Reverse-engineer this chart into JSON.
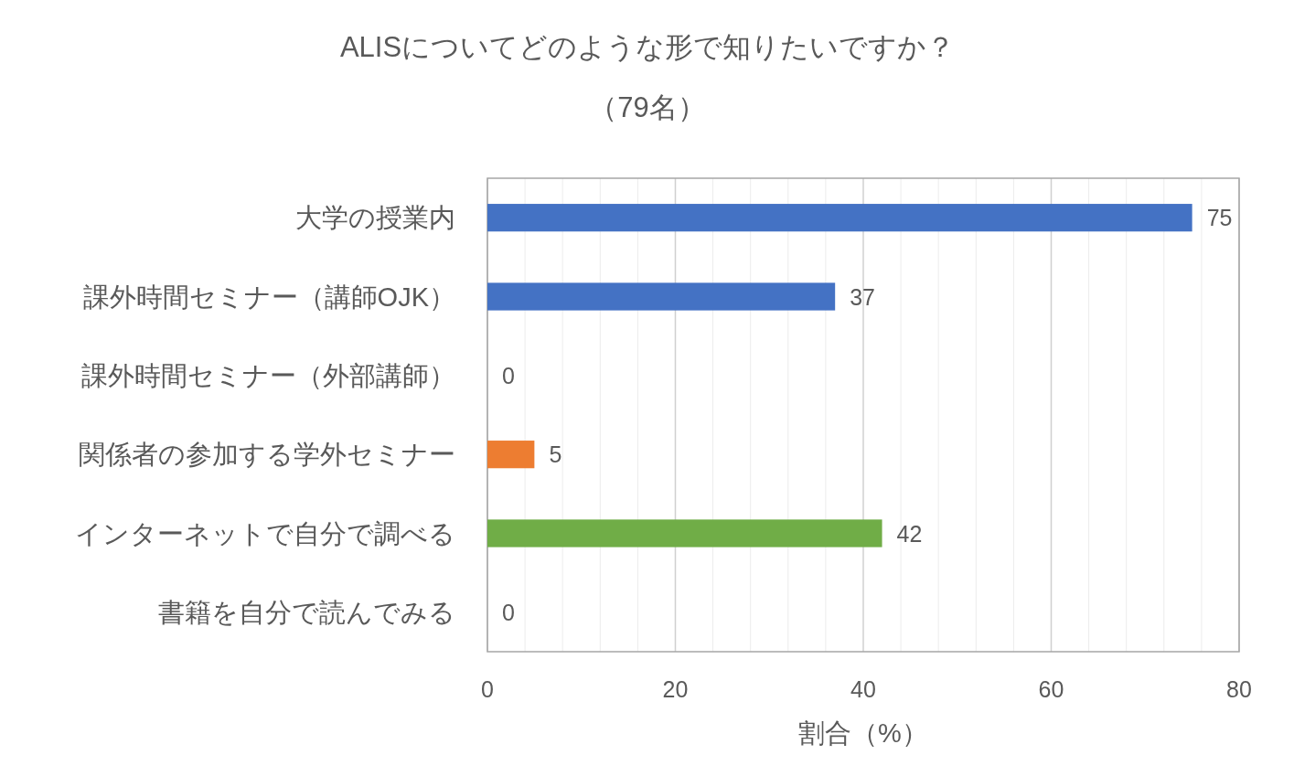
{
  "chart_data": {
    "type": "bar",
    "orientation": "horizontal",
    "title": "ALISについてどのような形で知りたいですか？",
    "subtitle": "（79名）",
    "xlabel": "割合（%）",
    "categories": [
      "大学の授業内",
      "課外時間セミナー（講師OJK）",
      "課外時間セミナー（外部講師）",
      "関係者の参加する学外セミナー",
      "インターネットで自分で調べる",
      "書籍を自分で読んでみる"
    ],
    "values": [
      75,
      37,
      0,
      5,
      42,
      0
    ],
    "colors": [
      "#4472c4",
      "#4472c4",
      "#4472c4",
      "#ed7d31",
      "#70ad47",
      "#70ad47"
    ],
    "xlim": [
      0,
      80
    ],
    "xticks": [
      0,
      {
        "value": 4,
        "label": null
      },
      {
        "value": 8,
        "label": null
      },
      {
        "value": 12,
        "label": null
      },
      {
        "value": 16,
        "label": null
      },
      20,
      {
        "value": 24,
        "label": null
      },
      {
        "value": 28,
        "label": null
      },
      {
        "value": 32,
        "label": null
      },
      {
        "value": 36,
        "label": null
      },
      40,
      {
        "value": 44,
        "label": null
      },
      {
        "value": 48,
        "label": null
      },
      {
        "value": 52,
        "label": null
      },
      {
        "value": 56,
        "label": null
      },
      60,
      {
        "value": 64,
        "label": null
      },
      {
        "value": 68,
        "label": null
      },
      {
        "value": 72,
        "label": null
      },
      {
        "value": 76,
        "label": null
      },
      80
    ],
    "grid": "x",
    "data_labels": true
  }
}
